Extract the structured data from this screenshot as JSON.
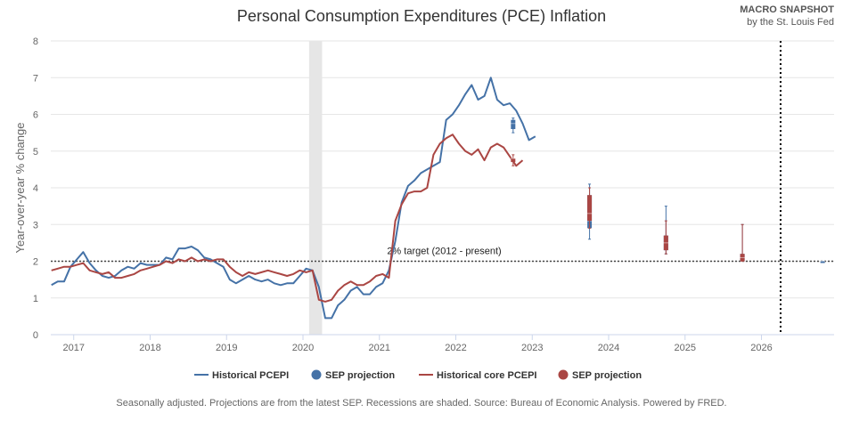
{
  "header": {
    "title": "Personal Consumption Expenditures (PCE) Inflation",
    "brand_line1": "MACRO SNAPSHOT",
    "brand_line2": "by the St. Louis Fed"
  },
  "footer": {
    "note": "Seasonally adjusted. Projections are from the latest SEP. Recessions are shaded. Source: Bureau of Economic Analysis. Powered by FRED."
  },
  "colors": {
    "pcepi": "#4572a7",
    "core": "#aa4643",
    "recession": "#e6e6e6",
    "grid": "#e6e6e6",
    "axis": "#ccd6eb",
    "target_line": "#444444"
  },
  "chart_data": {
    "type": "line",
    "title": "Personal Consumption Expenditures (PCE) Inflation",
    "ylabel": "Year-over-year % change",
    "xlabel": "",
    "ylim": [
      0,
      8
    ],
    "xlim": [
      2016.7,
      2026.95
    ],
    "yticks": [
      0,
      1,
      2,
      3,
      4,
      5,
      6,
      7,
      8
    ],
    "xticks": [
      {
        "value": 2017,
        "label": "2017"
      },
      {
        "value": 2018,
        "label": "2018"
      },
      {
        "value": 2019,
        "label": "2019"
      },
      {
        "value": 2020,
        "label": "2020"
      },
      {
        "value": 2021,
        "label": "2021"
      },
      {
        "value": 2022,
        "label": "2022"
      },
      {
        "value": 2023,
        "label": "2023"
      },
      {
        "value": 2024,
        "label": "2024"
      },
      {
        "value": 2025,
        "label": "2025"
      },
      {
        "value": 2026,
        "label": "2026"
      }
    ],
    "grid": true,
    "legend_position": "bottom",
    "recessions": [
      [
        2020.08,
        2020.25
      ]
    ],
    "target": {
      "value": 2,
      "label": "2% target (2012 - present)"
    },
    "projection_divider_x": 2026.25,
    "x_start": 2016.708,
    "x_step": 0.08333,
    "series": [
      {
        "name": "Historical PCEPI",
        "values": [
          1.35,
          1.45,
          1.45,
          1.85,
          2.05,
          2.25,
          1.95,
          1.75,
          1.6,
          1.55,
          1.6,
          1.75,
          1.85,
          1.8,
          1.95,
          1.9,
          1.9,
          1.9,
          2.1,
          2.05,
          2.35,
          2.35,
          2.4,
          2.3,
          2.1,
          2.05,
          1.95,
          1.85,
          1.5,
          1.4,
          1.5,
          1.6,
          1.5,
          1.45,
          1.5,
          1.4,
          1.35,
          1.4,
          1.4,
          1.6,
          1.8,
          1.75,
          1.3,
          0.45,
          0.45,
          0.8,
          0.95,
          1.2,
          1.3,
          1.1,
          1.1,
          1.3,
          1.4,
          1.75,
          2.55,
          3.6,
          4.05,
          4.2,
          4.4,
          4.5,
          4.6,
          4.7,
          5.85,
          6.0,
          6.25,
          6.55,
          6.8,
          6.4,
          6.5,
          7.0,
          6.4,
          6.25,
          6.3,
          6.1,
          5.75,
          5.3,
          5.4
        ]
      },
      {
        "name": "Historical core PCEPI",
        "values": [
          1.75,
          1.8,
          1.85,
          1.85,
          1.9,
          1.95,
          1.75,
          1.7,
          1.65,
          1.7,
          1.55,
          1.55,
          1.6,
          1.65,
          1.75,
          1.8,
          1.85,
          1.9,
          2.0,
          1.95,
          2.05,
          2.0,
          2.1,
          2.0,
          2.05,
          2.0,
          2.05,
          2.05,
          1.85,
          1.7,
          1.6,
          1.7,
          1.65,
          1.7,
          1.75,
          1.7,
          1.65,
          1.6,
          1.65,
          1.75,
          1.7,
          1.75,
          0.95,
          0.9,
          0.95,
          1.2,
          1.35,
          1.45,
          1.35,
          1.35,
          1.45,
          1.6,
          1.65,
          1.55,
          3.1,
          3.55,
          3.85,
          3.9,
          3.9,
          4.0,
          4.9,
          5.2,
          5.35,
          5.45,
          5.2,
          5.0,
          4.9,
          5.05,
          4.75,
          5.1,
          5.2,
          5.1,
          4.85,
          4.6,
          4.75
        ]
      }
    ],
    "sep_projections": [
      {
        "series": "Historical PCEPI",
        "x": 2022.75,
        "low": 5.5,
        "q1": 5.6,
        "median": 5.75,
        "q3": 5.85,
        "high": 5.9
      },
      {
        "series": "Historical PCEPI",
        "x": 2023.75,
        "low": 2.6,
        "q1": 2.9,
        "median": 3.1,
        "q3": 3.8,
        "high": 4.1
      },
      {
        "series": "Historical PCEPI",
        "x": 2024.75,
        "low": 2.2,
        "q1": 2.3,
        "median": 2.5,
        "q3": 2.7,
        "high": 3.5
      },
      {
        "series": "Historical PCEPI",
        "x": 2025.75,
        "low": 2.0,
        "q1": 2.0,
        "median": 2.1,
        "q3": 2.2,
        "high": 3.0
      },
      {
        "series": "Historical PCEPI",
        "x": 2026.8,
        "low": 2.0,
        "q1": 2.0,
        "median": 2.0,
        "q3": 2.0,
        "high": 2.0
      },
      {
        "series": "Historical core PCEPI",
        "x": 2022.75,
        "low": 4.6,
        "q1": 4.7,
        "median": 4.8,
        "q3": 4.8,
        "high": 4.9
      },
      {
        "series": "Historical core PCEPI",
        "x": 2023.75,
        "low": 2.9,
        "q1": 3.1,
        "median": 3.3,
        "q3": 3.8,
        "high": 4.0
      },
      {
        "series": "Historical core PCEPI",
        "x": 2024.75,
        "low": 2.2,
        "q1": 2.3,
        "median": 2.5,
        "q3": 2.7,
        "high": 3.1
      },
      {
        "series": "Historical core PCEPI",
        "x": 2025.75,
        "low": 2.0,
        "q1": 2.0,
        "median": 2.1,
        "q3": 2.2,
        "high": 3.0
      }
    ],
    "legend": [
      {
        "label": "Historical PCEPI",
        "kind": "line",
        "color": "#4572a7"
      },
      {
        "label": "SEP projection",
        "kind": "dot",
        "color": "#4572a7"
      },
      {
        "label": "Historical core PCEPI",
        "kind": "line",
        "color": "#aa4643"
      },
      {
        "label": "SEP projection",
        "kind": "dot",
        "color": "#aa4643"
      }
    ]
  }
}
